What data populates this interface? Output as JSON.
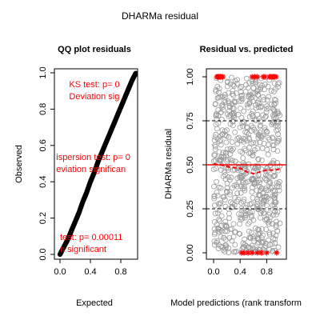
{
  "figure": {
    "title": "DHARMa residual"
  },
  "chart_data": [
    {
      "type": "scatter",
      "title": "QQ plot residuals",
      "xlabel": "Expected",
      "ylabel": "Observed",
      "xlim": [
        0,
        1
      ],
      "ylim": [
        0,
        1
      ],
      "xticks": [
        "0.0",
        "0.4",
        "0.8"
      ],
      "yticks": [
        "0.0",
        "0.2",
        "0.4",
        "0.6",
        "0.8",
        "1.0"
      ],
      "reference_line": {
        "from": [
          0,
          0
        ],
        "to": [
          1,
          1
        ],
        "color": "#ff0000"
      },
      "points_color": "#000000",
      "series": [
        {
          "x": [
            0.0,
            0.05,
            0.1,
            0.15,
            0.2,
            0.25,
            0.3,
            0.35,
            0.4,
            0.45,
            0.5,
            0.55,
            0.6,
            0.65,
            0.7,
            0.75,
            0.8,
            0.85,
            0.9,
            0.95,
            1.0
          ],
          "y": [
            0.0,
            0.04,
            0.08,
            0.13,
            0.18,
            0.23,
            0.29,
            0.34,
            0.4,
            0.45,
            0.51,
            0.56,
            0.61,
            0.66,
            0.71,
            0.76,
            0.81,
            0.86,
            0.91,
            0.96,
            1.0
          ]
        }
      ],
      "annotations": [
        {
          "line1": "KS test: p= 0",
          "line2": "Deviation  sig",
          "x": 0.12,
          "y": 0.92
        },
        {
          "line1": "ispersion test: p= 0",
          "line2": "eviation  significan",
          "x": -0.05,
          "y": 0.52
        },
        {
          "line1": "test: p= 0.00011",
          "line2": "n  significant",
          "x": 0.0,
          "y": 0.08
        }
      ]
    },
    {
      "type": "scatter",
      "title": "Residual vs. predicted",
      "xlabel": "Model predictions (rank transform",
      "ylabel": "DHARMa residual",
      "xlim": [
        0,
        1
      ],
      "ylim": [
        0,
        1
      ],
      "xticks": [
        "0.0",
        "0.4",
        "0.8"
      ],
      "yticks": [
        "0.00",
        "0.25",
        "0.50",
        "0.75",
        "1.00"
      ],
      "hlines_dashed": [
        0.25,
        0.75
      ],
      "hline_red": 0.5,
      "quantile_curve": [
        [
          0.0,
          0.505
        ],
        [
          0.1,
          0.5
        ],
        [
          0.2,
          0.49
        ],
        [
          0.3,
          0.485
        ],
        [
          0.4,
          0.48
        ],
        [
          0.5,
          0.46
        ],
        [
          0.6,
          0.45
        ],
        [
          0.7,
          0.46
        ],
        [
          0.8,
          0.47
        ],
        [
          0.9,
          0.47
        ],
        [
          1.0,
          0.475
        ]
      ],
      "points_color": "#9a9a9a",
      "outliers_color": "#ff0000",
      "outliers_top_x": [
        0.05,
        0.06,
        0.07,
        0.08,
        0.09,
        0.1,
        0.11,
        0.12,
        0.14,
        0.58,
        0.62,
        0.66,
        0.75,
        0.77,
        0.84,
        0.86,
        0.88,
        0.9,
        0.92,
        0.94
      ],
      "outliers_bottom_x": [
        0.42,
        0.46,
        0.52,
        0.58,
        0.66,
        0.72,
        0.8,
        0.95
      ]
    }
  ]
}
